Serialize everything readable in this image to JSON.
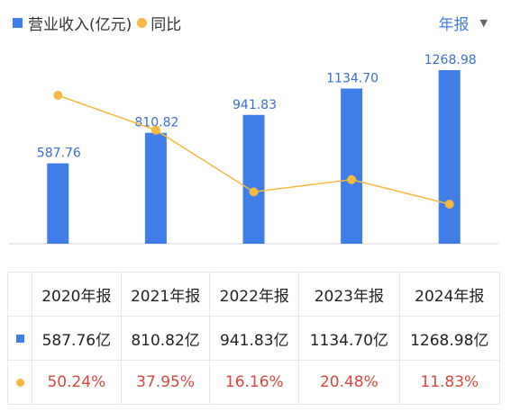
{
  "legend": {
    "revenue_label": "营业收入(亿元)",
    "yoy_label": "同比"
  },
  "period_selector": {
    "label": "年报"
  },
  "colors": {
    "bar": "#3f7ee8",
    "line": "#f5b840",
    "percent_text": "#d9473f"
  },
  "chart_data": {
    "type": "bar",
    "categories": [
      "2020年报",
      "2021年报",
      "2022年报",
      "2023年报",
      "2024年报"
    ],
    "series": [
      {
        "name": "营业收入(亿元)",
        "type": "bar",
        "values": [
          587.76,
          810.82,
          941.83,
          1134.7,
          1268.98
        ]
      },
      {
        "name": "同比",
        "type": "line",
        "values": [
          50.24,
          37.95,
          16.16,
          20.48,
          11.83
        ]
      }
    ],
    "bar_labels": [
      "587.76",
      "810.82",
      "941.83",
      "1134.70",
      "1268.98"
    ],
    "grid": false,
    "legend_position": "top-left"
  },
  "table": {
    "headers": [
      "2020年报",
      "2021年报",
      "2022年报",
      "2023年报",
      "2024年报"
    ],
    "revenue_row": [
      "587.76亿",
      "810.82亿",
      "941.83亿",
      "1134.70亿",
      "1268.98亿"
    ],
    "yoy_row": [
      "50.24%",
      "37.95%",
      "16.16%",
      "20.48%",
      "11.83%"
    ]
  }
}
